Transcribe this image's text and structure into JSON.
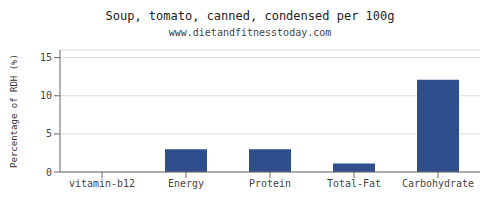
{
  "chart_data": {
    "type": "bar",
    "title": "Soup, tomato, canned, condensed per 100g",
    "subtitle": "www.dietandfitnesstoday.com",
    "categories": [
      "vitamin-b12",
      "Energy",
      "Protein",
      "Total-Fat",
      "Carbohydrate"
    ],
    "values": [
      0,
      3.0,
      3.0,
      1.1,
      12.1
    ],
    "color": "#2e4f8c",
    "ylabel": "Percentage of RDH (%)",
    "ylim": [
      0,
      16
    ],
    "yticks": [
      0,
      5,
      10,
      15
    ],
    "grid": true
  }
}
